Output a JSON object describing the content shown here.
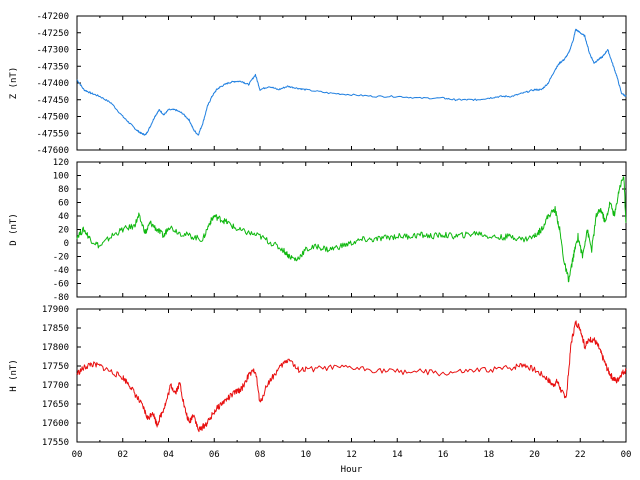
{
  "chart_data": {
    "type": "line",
    "title": "",
    "xlabel": "Hour",
    "x_tick_labels": [
      "00",
      "02",
      "04",
      "06",
      "08",
      "10",
      "12",
      "14",
      "16",
      "18",
      "20",
      "22",
      "00"
    ],
    "xlim": [
      0,
      24
    ],
    "grid": false,
    "legend": "none",
    "panels": [
      {
        "ylabel": "Z (nT)",
        "ylim": [
          -47600,
          -47200
        ],
        "y_ticks": [
          -47600,
          -47550,
          -47500,
          -47450,
          -47400,
          -47350,
          -47300,
          -47250,
          -47200
        ],
        "color": "#1f7fe0",
        "series": [
          {
            "x": [
              0,
              0.3,
              0.6,
              1.0,
              1.5,
              2.0,
              2.3,
              2.6,
              2.8,
              3.0,
              3.2,
              3.4,
              3.6,
              3.8,
              4.0,
              4.3,
              4.6,
              4.9,
              5.1,
              5.3,
              5.5,
              5.7,
              5.9,
              6.1,
              6.3,
              6.6,
              6.9,
              7.2,
              7.5,
              7.8,
              8.0,
              8.4,
              8.8,
              9.2,
              9.6,
              10.0,
              11.0,
              12.0,
              13.0,
              14.0,
              15.0,
              16.0,
              16.5,
              17.0,
              17.5,
              18.0,
              18.5,
              19.0,
              19.5,
              20.0,
              20.3,
              20.6,
              20.9,
              21.1,
              21.3,
              21.5,
              21.7,
              21.8,
              22.0,
              22.2,
              22.4,
              22.6,
              22.8,
              23.0,
              23.2,
              23.4,
              23.6,
              23.8,
              24.0
            ],
            "y": [
              -47390,
              -47420,
              -47430,
              -47440,
              -47460,
              -47500,
              -47520,
              -47540,
              -47550,
              -47555,
              -47530,
              -47500,
              -47480,
              -47495,
              -47480,
              -47480,
              -47490,
              -47510,
              -47540,
              -47555,
              -47520,
              -47470,
              -47440,
              -47420,
              -47410,
              -47400,
              -47395,
              -47395,
              -47405,
              -47375,
              -47420,
              -47410,
              -47420,
              -47410,
              -47415,
              -47420,
              -47430,
              -47435,
              -47440,
              -47440,
              -47445,
              -47445,
              -47450,
              -47450,
              -47450,
              -47445,
              -47440,
              -47440,
              -47430,
              -47420,
              -47420,
              -47400,
              -47360,
              -47340,
              -47330,
              -47310,
              -47270,
              -47240,
              -47250,
              -47260,
              -47310,
              -47340,
              -47330,
              -47320,
              -47300,
              -47340,
              -47380,
              -47430,
              -47440
            ]
          }
        ]
      },
      {
        "ylabel": "D (nT)",
        "ylim": [
          -80,
          120
        ],
        "y_ticks": [
          -80,
          -60,
          -40,
          -20,
          0,
          20,
          40,
          60,
          80,
          100,
          120
        ],
        "color": "#10b810",
        "series": [
          {
            "x": [
              0,
              0.3,
              0.6,
              1.0,
              1.5,
              2.0,
              2.5,
              2.7,
              3.0,
              3.2,
              3.5,
              3.8,
              4.0,
              4.5,
              5.0,
              5.5,
              5.8,
              6.0,
              6.3,
              6.6,
              7.0,
              7.5,
              8.0,
              8.5,
              9.0,
              9.3,
              9.6,
              10.0,
              10.5,
              11.0,
              11.5,
              12.0,
              12.5,
              13.0,
              13.5,
              14.0,
              14.5,
              15.0,
              15.5,
              16.0,
              16.5,
              17.0,
              17.5,
              18.0,
              18.5,
              19.0,
              19.5,
              20.0,
              20.3,
              20.6,
              20.9,
              21.1,
              21.3,
              21.5,
              21.7,
              21.9,
              22.1,
              22.3,
              22.5,
              22.7,
              22.9,
              23.1,
              23.3,
              23.5,
              23.7,
              23.9,
              24.0
            ],
            "y": [
              10,
              20,
              5,
              -5,
              10,
              20,
              25,
              40,
              15,
              30,
              20,
              10,
              25,
              15,
              10,
              5,
              30,
              40,
              35,
              30,
              20,
              15,
              10,
              0,
              -10,
              -20,
              -25,
              -10,
              -5,
              -10,
              -5,
              0,
              5,
              5,
              8,
              10,
              10,
              12,
              10,
              12,
              10,
              12,
              15,
              10,
              8,
              10,
              5,
              10,
              20,
              40,
              50,
              20,
              -30,
              -55,
              -20,
              10,
              -20,
              20,
              -10,
              40,
              50,
              30,
              60,
              40,
              80,
              100,
              30
            ]
          }
        ]
      },
      {
        "ylabel": "H (nT)",
        "ylim": [
          17550,
          17900
        ],
        "y_ticks": [
          17550,
          17600,
          17650,
          17700,
          17750,
          17800,
          17850,
          17900
        ],
        "color": "#e81010",
        "series": [
          {
            "x": [
              0,
              0.3,
              0.6,
              1.0,
              1.5,
              2.0,
              2.3,
              2.6,
              2.9,
              3.1,
              3.3,
              3.5,
              3.7,
              3.9,
              4.1,
              4.3,
              4.5,
              4.7,
              4.9,
              5.1,
              5.3,
              5.5,
              5.7,
              6.0,
              6.3,
              6.6,
              6.9,
              7.2,
              7.5,
              7.8,
              8.0,
              8.3,
              8.6,
              9.0,
              9.3,
              9.6,
              10.0,
              11.0,
              12.0,
              13.0,
              14.0,
              15.0,
              16.0,
              17.0,
              18.0,
              19.0,
              19.5,
              20.0,
              20.5,
              20.8,
              21.0,
              21.2,
              21.4,
              21.6,
              21.8,
              22.0,
              22.2,
              22.4,
              22.6,
              22.8,
              23.0,
              23.2,
              23.4,
              23.6,
              23.8,
              24.0
            ],
            "y": [
              17730,
              17745,
              17755,
              17750,
              17735,
              17720,
              17700,
              17670,
              17640,
              17610,
              17630,
              17595,
              17625,
              17655,
              17700,
              17680,
              17705,
              17640,
              17600,
              17625,
              17580,
              17590,
              17600,
              17630,
              17650,
              17665,
              17680,
              17690,
              17725,
              17740,
              17650,
              17700,
              17725,
              17755,
              17770,
              17740,
              17740,
              17745,
              17745,
              17740,
              17735,
              17735,
              17730,
              17735,
              17740,
              17745,
              17755,
              17740,
              17720,
              17700,
              17710,
              17680,
              17670,
              17810,
              17865,
              17850,
              17800,
              17820,
              17820,
              17800,
              17770,
              17740,
              17720,
              17710,
              17730,
              17740
            ]
          }
        ]
      }
    ]
  }
}
